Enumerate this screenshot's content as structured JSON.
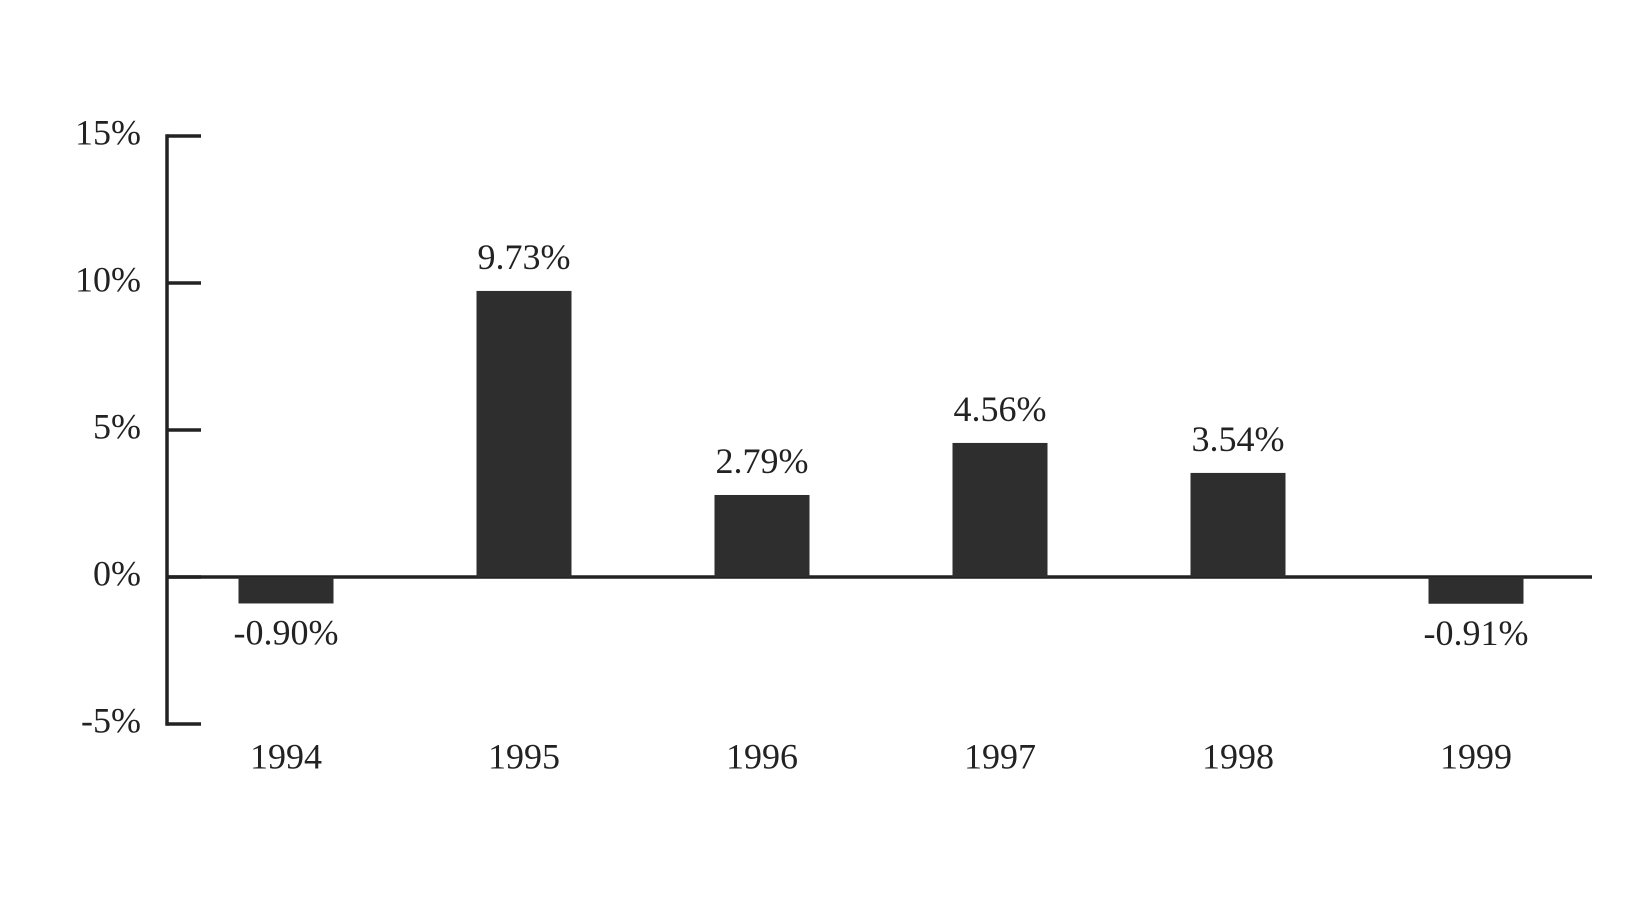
{
  "chart_data": {
    "type": "bar",
    "categories": [
      "1994",
      "1995",
      "1996",
      "1997",
      "1998",
      "1999"
    ],
    "values": [
      -0.9,
      9.73,
      2.79,
      4.56,
      3.54,
      -0.91
    ],
    "value_labels": [
      "-0.90%",
      "9.73%",
      "2.79%",
      "4.56%",
      "3.54%",
      "-0.91%"
    ],
    "color": "#2e2e2e",
    "ylim": [
      -5,
      15
    ],
    "yticks": [
      {
        "value": 15,
        "label": "15%"
      },
      {
        "value": 10,
        "label": "10%"
      },
      {
        "value": 5,
        "label": "5%"
      },
      {
        "value": 0,
        "label": "0%"
      },
      {
        "value": -5,
        "label": "-5%"
      }
    ],
    "grid": false
  }
}
